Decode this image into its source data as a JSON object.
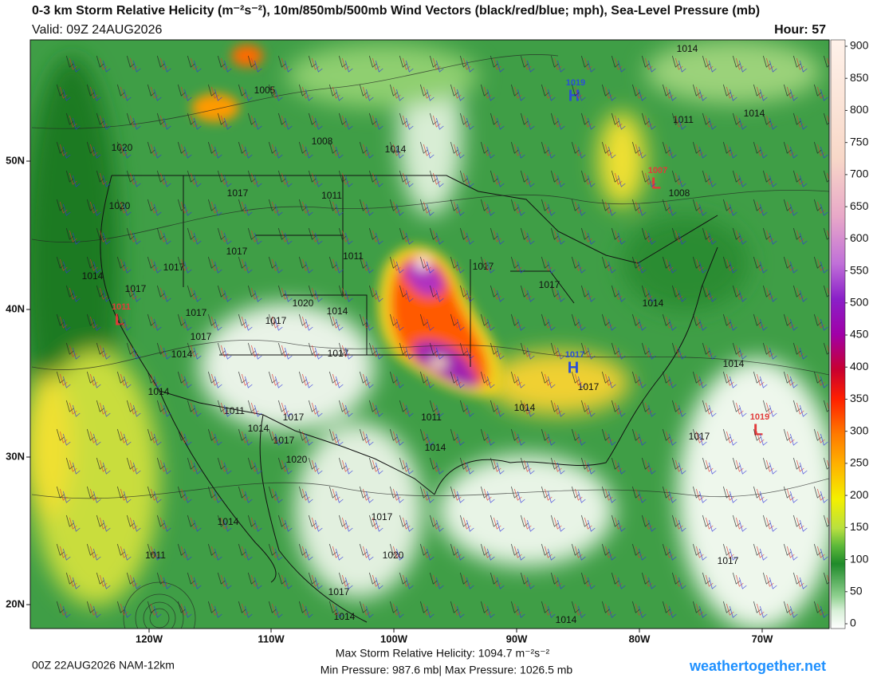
{
  "header": {
    "title": "0-3 km Storm Relative Helicity (m⁻²s⁻²), 10m/850mb/500mb Wind Vectors (black/red/blue; mph), Sea-Level Pressure (mb)",
    "valid": "Valid: 09Z 24AUG2026",
    "hour": "Hour: 57"
  },
  "colorbar": {
    "ticks": [
      0,
      50,
      100,
      150,
      200,
      250,
      300,
      350,
      400,
      450,
      500,
      550,
      600,
      650,
      700,
      750,
      800,
      850,
      900
    ]
  },
  "latitude_labels": [
    "50N",
    "40N",
    "30N",
    "20N"
  ],
  "longitude_labels": [
    "120W",
    "110W",
    "100W",
    "90W",
    "80W",
    "70W"
  ],
  "isobar_labels": [
    "1014",
    "1005",
    "1011",
    "1014",
    "1008",
    "1014",
    "1020",
    "1008",
    "1017",
    "1011",
    "1020",
    "1017",
    "1011",
    "1017",
    "1017",
    "1014",
    "1017",
    "1017",
    "1020",
    "1014",
    "1017",
    "1014",
    "1017",
    "1017",
    "1017",
    "1014",
    "1014",
    "1017",
    "1014",
    "1014",
    "1011",
    "1011",
    "1017",
    "1014",
    "1017",
    "1017",
    "1014",
    "1020",
    "1014",
    "1017",
    "1020",
    "1011",
    "1017",
    "1017",
    "1014",
    "1014"
  ],
  "centers": [
    {
      "value": "1019",
      "letter": "H",
      "color": "#2a4fd6"
    },
    {
      "value": "1007",
      "letter": "L",
      "color": "#e23a3a"
    },
    {
      "value": "1011",
      "letter": "L",
      "color": "#e23a3a"
    },
    {
      "value": "1017",
      "letter": "H",
      "color": "#2a4fd6"
    },
    {
      "value": "1019",
      "letter": "L",
      "color": "#e23a3a"
    }
  ],
  "footer": {
    "run": "00Z 22AUG2026 NAM-12km",
    "max_helicity": "Max Storm Relative Helicity: 1094.7 m⁻²s⁻²",
    "pressure_range": "Min Pressure: 987.6 mb| Max Pressure: 1026.5 mb",
    "website": "weathertogether.net"
  }
}
